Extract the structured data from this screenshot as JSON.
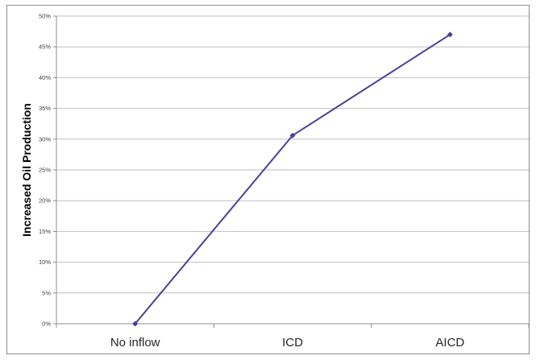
{
  "chart_data": {
    "type": "line",
    "title": "",
    "xlabel": "",
    "ylabel": "Increased Oil Production",
    "categories": [
      "No inflow",
      "ICD",
      "AICD"
    ],
    "series": [
      {
        "values": [
          0,
          30.6,
          47
        ],
        "color": "#4b3f9a",
        "marker": "diamond"
      }
    ],
    "ylim": [
      0,
      50
    ],
    "yticks": [
      "0%",
      "5%",
      "10%",
      "15%",
      "20%",
      "25%",
      "30%",
      "35%",
      "40%",
      "45%",
      "50%"
    ],
    "grid": true,
    "legend": "none",
    "gridColor": "#bfbfbf",
    "axisColor": "#8c8c8c"
  }
}
